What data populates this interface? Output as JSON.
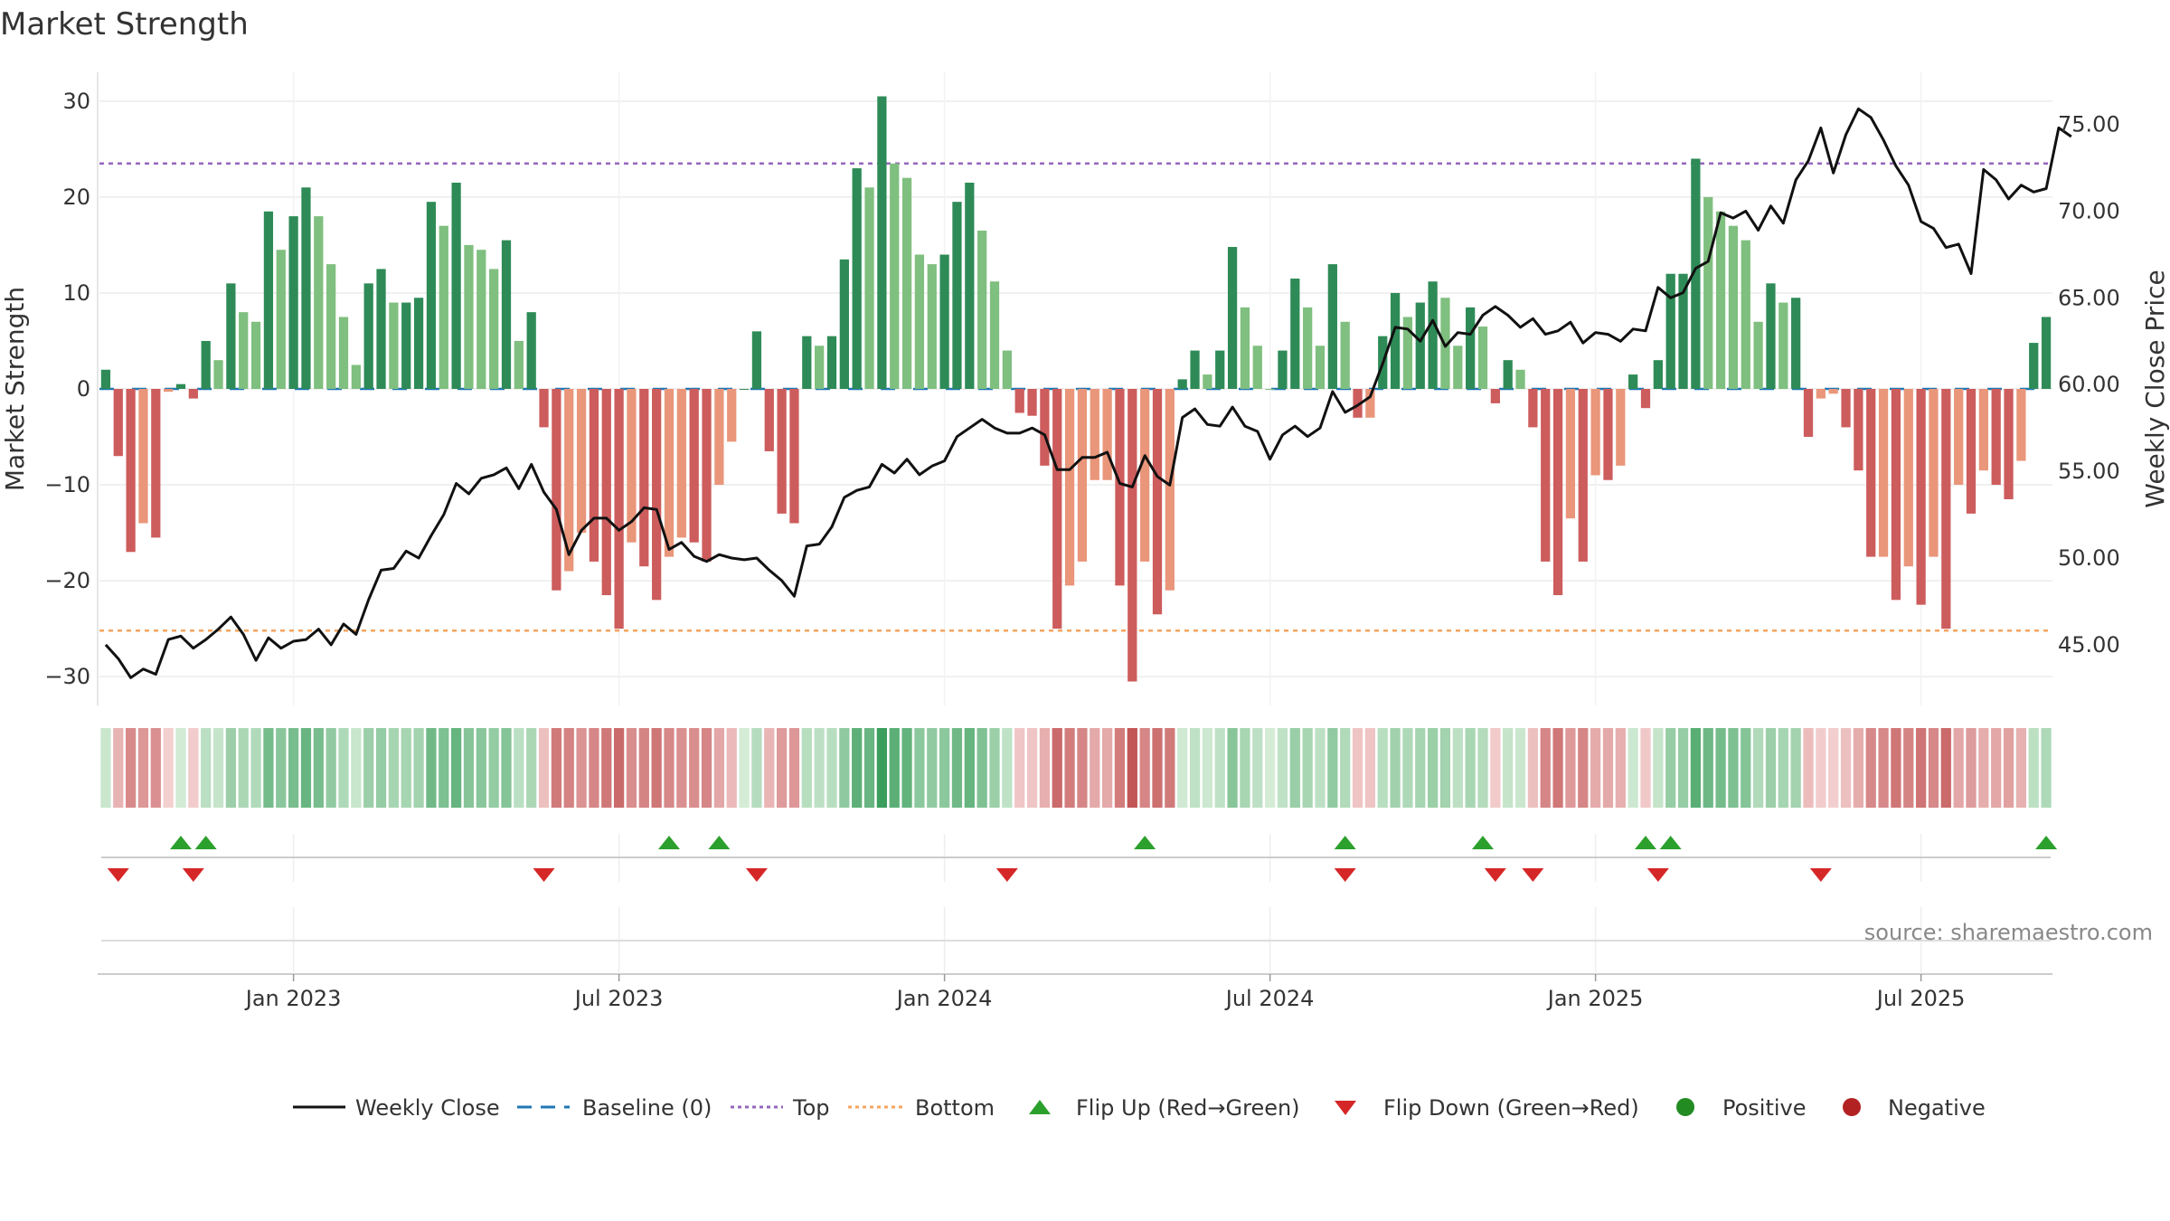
{
  "title": "Market Strength",
  "source": "source: sharemaestro.com",
  "chart_data": {
    "type": "bar",
    "title": "Market Strength",
    "ylabel_left": "Market Strength",
    "ylabel_right": "Weekly Close Price",
    "ylim_left": [
      -33,
      33
    ],
    "yticks_left": [
      30,
      20,
      10,
      0,
      -10,
      -20,
      -30
    ],
    "yticks_left_labels": [
      "30",
      "20",
      "10",
      "0",
      "−10",
      "−20",
      "−30"
    ],
    "ylim_right": [
      41.5,
      78
    ],
    "yticks_right": [
      75,
      70,
      65,
      60,
      55,
      50,
      45
    ],
    "yticks_right_labels": [
      "75.00",
      "70.00",
      "65.00",
      "60.00",
      "55.00",
      "50.00",
      "45.00"
    ],
    "x_start_week": -15,
    "weeks_per_month": 4.345,
    "xticks": [
      {
        "label": "Jan 2023",
        "week": 0
      },
      {
        "label": "Jul 2023",
        "week": 26
      },
      {
        "label": "Jan 2024",
        "week": 52
      },
      {
        "label": "Jul 2024",
        "week": 78
      },
      {
        "label": "Jan 2025",
        "week": 104
      },
      {
        "label": "Jul 2025",
        "week": 130
      }
    ],
    "top_line": 23.5,
    "bottom_line": -25.2,
    "baseline": 0,
    "strength": [
      2,
      -7,
      -17,
      -14,
      -15.5,
      -0.3,
      0.5,
      -1,
      5,
      3,
      11,
      8,
      7,
      18.5,
      14.5,
      18,
      21,
      18,
      13,
      7.5,
      2.5,
      11,
      12.5,
      9,
      9,
      9.5,
      19.5,
      17,
      21.5,
      15,
      14.5,
      12.5,
      15.5,
      5,
      8,
      -4,
      -21,
      -19,
      -15,
      -18,
      -21.5,
      -25,
      -16,
      -18.5,
      -22,
      -17.5,
      -15.5,
      -16,
      -18,
      -10,
      -5.5,
      0,
      6,
      -6.5,
      -13,
      -14,
      5.5,
      4.5,
      5.5,
      13.5,
      23,
      21,
      30.5,
      23.5,
      22,
      14,
      13,
      14,
      19.5,
      21.5,
      16.5,
      11.2,
      4,
      -2.5,
      -2.8,
      -8,
      -25,
      -20.5,
      -18,
      -9.5,
      -9.5,
      -20.5,
      -30.5,
      -18,
      -23.5,
      -21,
      1,
      4,
      1.5,
      4,
      14.8,
      8.5,
      4.5,
      0,
      4,
      11.5,
      8.5,
      4.5,
      13,
      7,
      -3,
      -3,
      5.5,
      10,
      7.5,
      9,
      11.2,
      9.5,
      4.5,
      8.5,
      6.5,
      -1.5,
      3,
      2,
      -4,
      -18,
      -21.5,
      -13.5,
      -18,
      -9,
      -9.5,
      -8,
      1.5,
      -2,
      3,
      12,
      12,
      24,
      20,
      18.5,
      17,
      15.5,
      7,
      11,
      9,
      9.5,
      -5,
      -1,
      -0.5,
      -4,
      -8.5,
      -17.5,
      -17.5,
      -22,
      -18.5,
      -22.5,
      -17.5,
      -25,
      -10,
      -13,
      -8.5,
      -10,
      -11.5,
      -7.5,
      4.8,
      7.5
    ],
    "close": [
      45,
      44.2,
      43.1,
      43.6,
      43.3,
      45.3,
      45.5,
      44.8,
      45.3,
      45.9,
      46.6,
      45.6,
      44.1,
      45.4,
      44.8,
      45.2,
      45.3,
      45.9,
      45,
      46.2,
      45.6,
      47.6,
      49.3,
      49.4,
      50.4,
      50,
      51.3,
      52.5,
      54.3,
      53.7,
      54.6,
      54.8,
      55.2,
      54,
      55.4,
      53.8,
      52.8,
      50.2,
      51.6,
      52.3,
      52.3,
      51.6,
      52.1,
      52.9,
      52.8,
      50.5,
      50.9,
      50.1,
      49.8,
      50.2,
      50,
      49.9,
      50,
      49.3,
      48.7,
      47.8,
      50.7,
      50.8,
      51.8,
      53.5,
      53.9,
      54.1,
      55.4,
      54.9,
      55.7,
      54.8,
      55.3,
      55.6,
      57,
      57.5,
      58,
      57.5,
      57.2,
      57.2,
      57.5,
      57.1,
      55.1,
      55.1,
      55.8,
      55.8,
      56.1,
      54.3,
      54.1,
      55.9,
      54.7,
      54.2,
      58.1,
      58.6,
      57.7,
      57.6,
      58.7,
      57.6,
      57.3,
      55.7,
      57.1,
      57.6,
      57,
      57.5,
      59.6,
      58.4,
      58.8,
      59.3,
      61.2,
      63.3,
      63.2,
      62.5,
      63.7,
      62.2,
      63,
      62.9,
      64,
      64.5,
      64,
      63.3,
      63.8,
      62.9,
      63.1,
      63.6,
      62.4,
      63,
      62.9,
      62.5,
      63.2,
      63.1,
      65.6,
      65,
      65.3,
      66.7,
      67.1,
      69.9,
      69.6,
      70,
      68.9,
      70.3,
      69.3,
      71.8,
      72.9,
      74.8,
      72.2,
      74.4,
      75.9,
      75.4,
      74.1,
      72.6,
      71.5,
      69.4,
      69,
      67.9,
      68.1,
      66.4,
      72.4,
      71.8,
      70.7,
      71.5,
      71.1,
      71.3,
      74.8,
      74.3
    ],
    "flips_up_weeks": [
      -9,
      -7,
      30,
      34,
      68,
      84,
      95,
      108,
      110,
      140
    ],
    "flips_down_weeks": [
      -14,
      -8,
      20,
      37,
      57,
      84,
      96,
      99,
      109,
      122
    ],
    "legend": [
      "Weekly Close",
      "Baseline (0)",
      "Top",
      "Bottom",
      "Flip Up (Red→Green)",
      "Flip Down (Green→Red)",
      "Positive",
      "Negative"
    ]
  },
  "colors": {
    "pos_dark": "#2e8b57",
    "pos_light": "#7fbf7f",
    "neg_dark": "#cd5c5c",
    "neg_light": "#e9967a",
    "close_line": "#111111",
    "baseline": "#1f77b4",
    "top": "#9467bd",
    "bottom": "#f4a460",
    "flip_up": "#2ca02c",
    "flip_down": "#d62728",
    "positive_dot": "#228b22",
    "negative_dot": "#b22222"
  }
}
